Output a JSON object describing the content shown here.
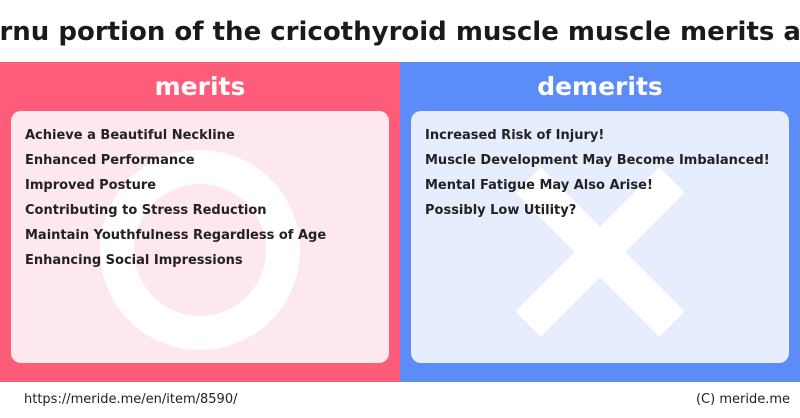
{
  "title": "Posterior cornu portion of the cricothyroid muscle muscle merits and demerits",
  "colors": {
    "merits_accent": "#ff5c7a",
    "merits_card": "#fde9ed",
    "demerits_accent": "#5b8cf7",
    "demerits_card": "#e6edfd"
  },
  "merits": {
    "heading": "merits",
    "icon": "circle-mark-icon",
    "items": [
      "Achieve a Beautiful Neckline",
      "Enhanced Performance",
      "Improved Posture",
      "Contributing to Stress Reduction",
      "Maintain Youthfulness Regardless of Age",
      "Enhancing Social Impressions"
    ]
  },
  "demerits": {
    "heading": "demerits",
    "icon": "cross-mark-icon",
    "items": [
      "Increased Risk of Injury!",
      "Muscle Development May Become Imbalanced!",
      "Mental Fatigue May Also Arise!",
      "Possibly Low Utility?"
    ]
  },
  "footer": {
    "url": "https://meride.me/en/item/8590/",
    "copyright": "(C) meride.me"
  }
}
